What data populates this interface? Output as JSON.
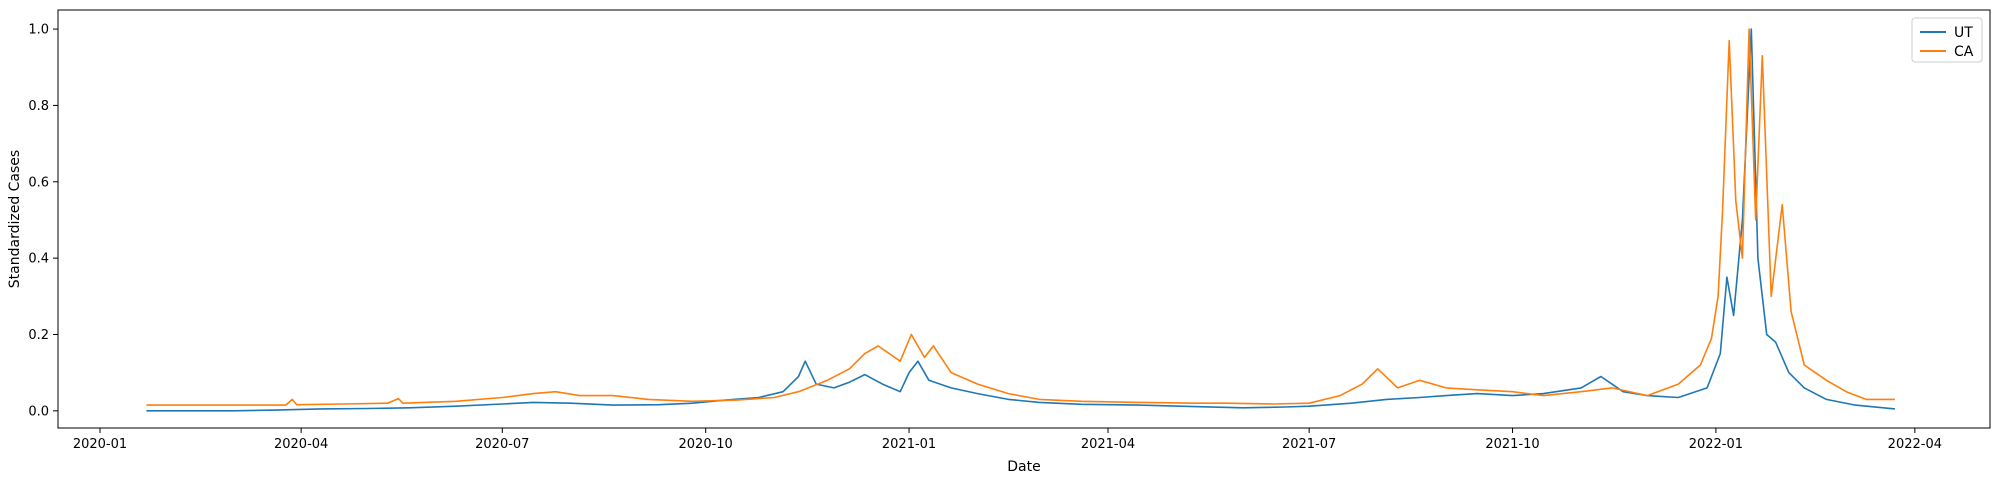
{
  "chart_data": {
    "type": "line",
    "title": "",
    "xlabel": "Date",
    "ylabel": "Standardized Cases",
    "xlim": [
      "2019-12-13",
      "2022-05-05"
    ],
    "ylim": [
      -0.045,
      1.05
    ],
    "grid": false,
    "legend": {
      "placement": "top-right",
      "entries": [
        "UT",
        "CA"
      ]
    },
    "x_ticks": [
      "2020-01",
      "2020-04",
      "2020-07",
      "2020-10",
      "2021-01",
      "2021-04",
      "2021-07",
      "2021-10",
      "2022-01",
      "2022-04"
    ],
    "y_ticks": [
      "0.0",
      "0.2",
      "0.4",
      "0.6",
      "0.8",
      "1.0"
    ],
    "series": [
      {
        "name": "UT",
        "color": "#1f77b4",
        "points": [
          [
            "2020-01-22",
            0.0
          ],
          [
            "2020-03-01",
            0.0
          ],
          [
            "2020-03-20",
            0.002
          ],
          [
            "2020-04-10",
            0.005
          ],
          [
            "2020-05-01",
            0.006
          ],
          [
            "2020-05-20",
            0.008
          ],
          [
            "2020-06-10",
            0.012
          ],
          [
            "2020-07-01",
            0.018
          ],
          [
            "2020-07-15",
            0.022
          ],
          [
            "2020-08-01",
            0.02
          ],
          [
            "2020-08-20",
            0.015
          ],
          [
            "2020-09-10",
            0.016
          ],
          [
            "2020-09-25",
            0.02
          ],
          [
            "2020-10-10",
            0.028
          ],
          [
            "2020-10-25",
            0.035
          ],
          [
            "2020-11-05",
            0.05
          ],
          [
            "2020-11-12",
            0.09
          ],
          [
            "2020-11-15",
            0.13
          ],
          [
            "2020-11-20",
            0.07
          ],
          [
            "2020-11-28",
            0.06
          ],
          [
            "2020-12-05",
            0.075
          ],
          [
            "2020-12-12",
            0.095
          ],
          [
            "2020-12-20",
            0.07
          ],
          [
            "2020-12-28",
            0.05
          ],
          [
            "2021-01-01",
            0.1
          ],
          [
            "2021-01-05",
            0.13
          ],
          [
            "2021-01-10",
            0.08
          ],
          [
            "2021-01-20",
            0.06
          ],
          [
            "2021-02-01",
            0.045
          ],
          [
            "2021-02-15",
            0.03
          ],
          [
            "2021-03-01",
            0.022
          ],
          [
            "2021-03-20",
            0.017
          ],
          [
            "2021-04-15",
            0.015
          ],
          [
            "2021-05-10",
            0.011
          ],
          [
            "2021-06-01",
            0.008
          ],
          [
            "2021-06-20",
            0.01
          ],
          [
            "2021-07-01",
            0.012
          ],
          [
            "2021-07-20",
            0.02
          ],
          [
            "2021-08-05",
            0.03
          ],
          [
            "2021-08-20",
            0.035
          ],
          [
            "2021-09-01",
            0.04
          ],
          [
            "2021-09-15",
            0.045
          ],
          [
            "2021-10-01",
            0.04
          ],
          [
            "2021-10-15",
            0.045
          ],
          [
            "2021-11-01",
            0.06
          ],
          [
            "2021-11-10",
            0.09
          ],
          [
            "2021-11-20",
            0.05
          ],
          [
            "2021-12-01",
            0.04
          ],
          [
            "2021-12-15",
            0.035
          ],
          [
            "2021-12-28",
            0.06
          ],
          [
            "2022-01-03",
            0.15
          ],
          [
            "2022-01-06",
            0.35
          ],
          [
            "2022-01-09",
            0.25
          ],
          [
            "2022-01-13",
            0.5
          ],
          [
            "2022-01-17",
            1.0
          ],
          [
            "2022-01-20",
            0.4
          ],
          [
            "2022-01-24",
            0.2
          ],
          [
            "2022-01-28",
            0.18
          ],
          [
            "2022-02-03",
            0.1
          ],
          [
            "2022-02-10",
            0.06
          ],
          [
            "2022-02-20",
            0.03
          ],
          [
            "2022-03-05",
            0.015
          ],
          [
            "2022-03-23",
            0.005
          ]
        ]
      },
      {
        "name": "CA",
        "color": "#ff7f0e",
        "points": [
          [
            "2020-01-22",
            0.015
          ],
          [
            "2020-03-25",
            0.015
          ],
          [
            "2020-03-28",
            0.03
          ],
          [
            "2020-03-30",
            0.016
          ],
          [
            "2020-04-20",
            0.018
          ],
          [
            "2020-05-10",
            0.02
          ],
          [
            "2020-05-15",
            0.032
          ],
          [
            "2020-05-17",
            0.02
          ],
          [
            "2020-06-10",
            0.025
          ],
          [
            "2020-07-01",
            0.035
          ],
          [
            "2020-07-15",
            0.045
          ],
          [
            "2020-07-25",
            0.05
          ],
          [
            "2020-08-05",
            0.04
          ],
          [
            "2020-08-20",
            0.04
          ],
          [
            "2020-09-05",
            0.03
          ],
          [
            "2020-09-25",
            0.025
          ],
          [
            "2020-10-15",
            0.028
          ],
          [
            "2020-11-01",
            0.035
          ],
          [
            "2020-11-12",
            0.05
          ],
          [
            "2020-11-25",
            0.08
          ],
          [
            "2020-12-05",
            0.11
          ],
          [
            "2020-12-12",
            0.15
          ],
          [
            "2020-12-18",
            0.17
          ],
          [
            "2020-12-28",
            0.13
          ],
          [
            "2021-01-02",
            0.2
          ],
          [
            "2021-01-08",
            0.14
          ],
          [
            "2021-01-12",
            0.17
          ],
          [
            "2021-01-20",
            0.1
          ],
          [
            "2021-02-01",
            0.07
          ],
          [
            "2021-02-15",
            0.045
          ],
          [
            "2021-03-01",
            0.03
          ],
          [
            "2021-03-20",
            0.025
          ],
          [
            "2021-04-15",
            0.022
          ],
          [
            "2021-05-10",
            0.02
          ],
          [
            "2021-05-25",
            0.02
          ],
          [
            "2021-06-15",
            0.018
          ],
          [
            "2021-07-01",
            0.02
          ],
          [
            "2021-07-15",
            0.04
          ],
          [
            "2021-07-25",
            0.07
          ],
          [
            "2021-08-01",
            0.11
          ],
          [
            "2021-08-10",
            0.06
          ],
          [
            "2021-08-20",
            0.08
          ],
          [
            "2021-09-01",
            0.06
          ],
          [
            "2021-09-15",
            0.055
          ],
          [
            "2021-10-01",
            0.05
          ],
          [
            "2021-10-15",
            0.04
          ],
          [
            "2021-11-01",
            0.05
          ],
          [
            "2021-11-15",
            0.06
          ],
          [
            "2021-12-01",
            0.04
          ],
          [
            "2021-12-15",
            0.07
          ],
          [
            "2021-12-25",
            0.12
          ],
          [
            "2021-12-30",
            0.19
          ],
          [
            "2022-01-02",
            0.3
          ],
          [
            "2022-01-04",
            0.52
          ],
          [
            "2022-01-07",
            0.97
          ],
          [
            "2022-01-10",
            0.55
          ],
          [
            "2022-01-13",
            0.4
          ],
          [
            "2022-01-16",
            1.0
          ],
          [
            "2022-01-19",
            0.5
          ],
          [
            "2022-01-22",
            0.93
          ],
          [
            "2022-01-26",
            0.3
          ],
          [
            "2022-01-31",
            0.54
          ],
          [
            "2022-02-04",
            0.26
          ],
          [
            "2022-02-10",
            0.12
          ],
          [
            "2022-02-20",
            0.08
          ],
          [
            "2022-03-01",
            0.05
          ],
          [
            "2022-03-10",
            0.03
          ],
          [
            "2022-03-23",
            0.03
          ]
        ]
      }
    ]
  }
}
